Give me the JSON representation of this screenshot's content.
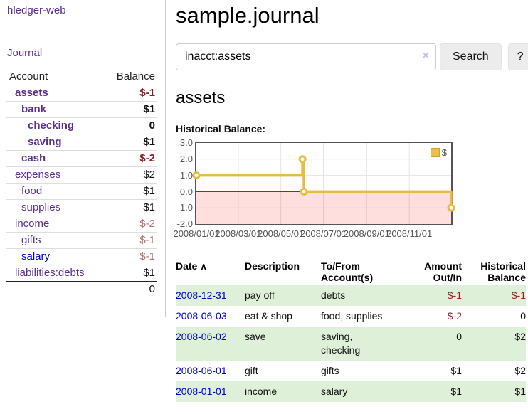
{
  "app": {
    "title": "hledger-web"
  },
  "nav": {
    "journal": "Journal"
  },
  "sidebar": {
    "headers": {
      "account": "Account",
      "balance": "Balance"
    },
    "accounts": [
      {
        "name": "assets",
        "balance": "$-1",
        "depth": 0,
        "bold": true,
        "neg": "strong",
        "link": "purple"
      },
      {
        "name": "bank",
        "balance": "$1",
        "depth": 1,
        "bold": true,
        "neg": "none",
        "link": "purple"
      },
      {
        "name": "checking",
        "balance": "0",
        "depth": 2,
        "bold": true,
        "neg": "none",
        "link": "purple"
      },
      {
        "name": "saving",
        "balance": "$1",
        "depth": 2,
        "bold": true,
        "neg": "none",
        "link": "purple"
      },
      {
        "name": "cash",
        "balance": "$-2",
        "depth": 1,
        "bold": true,
        "neg": "strong",
        "link": "purple"
      },
      {
        "name": "expenses",
        "balance": "$2",
        "depth": 0,
        "bold": false,
        "neg": "none",
        "link": "purple"
      },
      {
        "name": "food",
        "balance": "$1",
        "depth": 1,
        "bold": false,
        "neg": "none",
        "link": "purple"
      },
      {
        "name": "supplies",
        "balance": "$1",
        "depth": 1,
        "bold": false,
        "neg": "none",
        "link": "purple"
      },
      {
        "name": "income",
        "balance": "$-2",
        "depth": 0,
        "bold": false,
        "neg": "soft",
        "link": "purple"
      },
      {
        "name": "gifts",
        "balance": "$-1",
        "depth": 1,
        "bold": false,
        "neg": "soft",
        "link": "purple"
      },
      {
        "name": "salary",
        "balance": "$-1",
        "depth": 1,
        "bold": false,
        "neg": "soft",
        "link": "blue"
      },
      {
        "name": "liabilities:debts",
        "balance": "$1",
        "depth": 0,
        "bold": false,
        "neg": "none",
        "link": "purple"
      }
    ],
    "total": "0"
  },
  "main": {
    "title": "sample.journal",
    "account_heading": "assets",
    "chart_label": "Historical Balance:"
  },
  "search": {
    "value": "inacct:assets",
    "clear_icon": "×",
    "button_label": "Search",
    "help_label": "?"
  },
  "chart_data": {
    "type": "line",
    "step": true,
    "title": "Historical Balance",
    "ylim": [
      -2.0,
      3.0
    ],
    "yticks": [
      "3.0",
      "2.0",
      "1.0",
      "0.0",
      "-1.0",
      "-2.0"
    ],
    "ytick_values": [
      3,
      2,
      1,
      0,
      -1,
      -2
    ],
    "xlim": [
      "2008-01-01",
      "2008-12-31"
    ],
    "xticks": [
      "2008/01/01",
      "2008/03/01",
      "2008/05/01",
      "2008/07/01",
      "2008/09/01",
      "2008/11/01"
    ],
    "grid": true,
    "legend": {
      "label": "$",
      "position": "top-right"
    },
    "series": [
      {
        "name": "$",
        "points": [
          [
            "2008-01-01",
            1
          ],
          [
            "2008-06-01",
            2
          ],
          [
            "2008-06-03",
            0
          ],
          [
            "2008-12-31",
            -1
          ]
        ]
      }
    ],
    "negative_region_shaded": true
  },
  "register": {
    "headers": {
      "date": "Date",
      "description": "Description",
      "accounts": "To/From Account(s)",
      "amount": "Amount Out/In",
      "balance": "Historical Balance"
    },
    "sort_icon": "∧",
    "rows": [
      {
        "date": "2008-12-31",
        "description": "pay off",
        "accounts": "debts",
        "amount": "$-1",
        "balance": "$-1"
      },
      {
        "date": "2008-06-03",
        "description": "eat & shop",
        "accounts": "food, supplies",
        "amount": "$-2",
        "balance": "0"
      },
      {
        "date": "2008-06-02",
        "description": "save",
        "accounts": "saving, checking",
        "amount": "0",
        "balance": "$2"
      },
      {
        "date": "2008-06-01",
        "description": "gift",
        "accounts": "gifts",
        "amount": "$1",
        "balance": "$2"
      },
      {
        "date": "2008-01-01",
        "description": "income",
        "accounts": "salary",
        "amount": "$1",
        "balance": "$1"
      }
    ]
  },
  "colors": {
    "link_purple": "#5b2f91",
    "link_blue": "#0000d9",
    "date_link_blue": "#0000cc",
    "negative_strong": "#8b1f24",
    "negative_soft": "#b07070",
    "row_stripe_green": "#dff0d8",
    "series_gold": "#e6bc45",
    "zero_line_red": "#a40000",
    "chart_border_gray": "#545454"
  }
}
